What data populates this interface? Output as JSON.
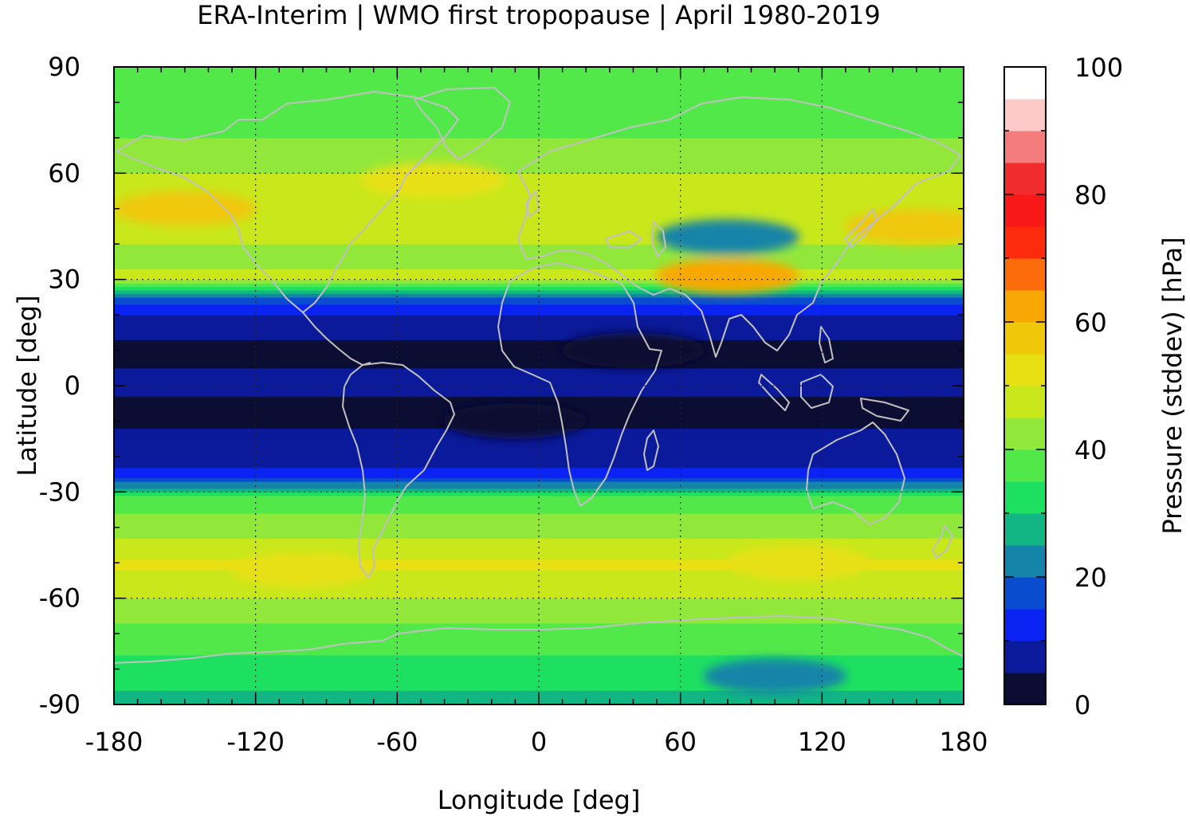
{
  "chart_data": {
    "type": "heatmap",
    "title": "ERA-Interim | WMO first tropopause | April 1980-2019",
    "xlabel": "Longitude [deg]",
    "ylabel": "Latitude [deg]",
    "colorbar_label": "Pressure (stddev) [hPa]",
    "xlim": [
      -180,
      180
    ],
    "ylim": [
      -90,
      90
    ],
    "xticks": [
      "-180",
      "-120",
      "-60",
      "0",
      "60",
      "120",
      "180"
    ],
    "yticks": [
      "90",
      "60",
      "30",
      "0",
      "-30",
      "-60",
      "-90"
    ],
    "colorbar_ticks": [
      "100",
      "80",
      "60",
      "40",
      "20",
      "0"
    ],
    "colorbar_range": [
      0,
      100
    ],
    "grid": true,
    "colorbar_levels": [
      {
        "min": 0,
        "max": 5,
        "color": "#0b0d33"
      },
      {
        "min": 5,
        "max": 10,
        "color": "#0a1a9a"
      },
      {
        "min": 10,
        "max": 15,
        "color": "#0a22f2"
      },
      {
        "min": 15,
        "max": 20,
        "color": "#0a4cd0"
      },
      {
        "min": 20,
        "max": 25,
        "color": "#1484a8"
      },
      {
        "min": 25,
        "max": 30,
        "color": "#12b584"
      },
      {
        "min": 30,
        "max": 35,
        "color": "#1ee060"
      },
      {
        "min": 35,
        "max": 40,
        "color": "#52e84a"
      },
      {
        "min": 40,
        "max": 45,
        "color": "#92e83a"
      },
      {
        "min": 45,
        "max": 50,
        "color": "#c8e81c"
      },
      {
        "min": 50,
        "max": 55,
        "color": "#e8e012"
      },
      {
        "min": 55,
        "max": 60,
        "color": "#f0c80a"
      },
      {
        "min": 60,
        "max": 65,
        "color": "#f8a804"
      },
      {
        "min": 65,
        "max": 70,
        "color": "#fc6c0a"
      },
      {
        "min": 70,
        "max": 75,
        "color": "#fe2a0c"
      },
      {
        "min": 75,
        "max": 80,
        "color": "#f81818"
      },
      {
        "min": 80,
        "max": 85,
        "color": "#f02c2c"
      },
      {
        "min": 85,
        "max": 90,
        "color": "#f47c7c"
      },
      {
        "min": 90,
        "max": 95,
        "color": "#fcc8c8"
      },
      {
        "min": 95,
        "max": 100,
        "color": "#ffffff"
      }
    ],
    "zonal_profile": {
      "lat": [
        -90,
        -80,
        -70,
        -60,
        -50,
        -40,
        -32,
        -28,
        -25,
        -22,
        -18,
        -12,
        -5,
        0,
        5,
        12,
        18,
        22,
        26,
        30,
        35,
        45,
        55,
        65,
        75,
        90
      ],
      "value": [
        28,
        33,
        38,
        45,
        51,
        42,
        38,
        22,
        12,
        8,
        8,
        5,
        4,
        6,
        5,
        4,
        8,
        12,
        22,
        46,
        44,
        46,
        48,
        42,
        38,
        40
      ]
    },
    "anomalies": [
      {
        "lon": 100,
        "lat": -82,
        "value": 23
      },
      {
        "lon": 80,
        "lat": 42,
        "value": 24
      },
      {
        "lon": -150,
        "lat": 50,
        "value": 55
      },
      {
        "lon": -45,
        "lat": 58,
        "value": 53
      },
      {
        "lon": 160,
        "lat": 45,
        "value": 56
      },
      {
        "lon": 80,
        "lat": 31,
        "value": 60
      },
      {
        "lon": 110,
        "lat": -50,
        "value": 54
      },
      {
        "lon": -100,
        "lat": -52,
        "value": 52
      },
      {
        "lon": 40,
        "lat": 10,
        "value": 3
      },
      {
        "lon": -10,
        "lat": -10,
        "value": 3
      }
    ],
    "coastline_color": "#c0c0c0"
  }
}
